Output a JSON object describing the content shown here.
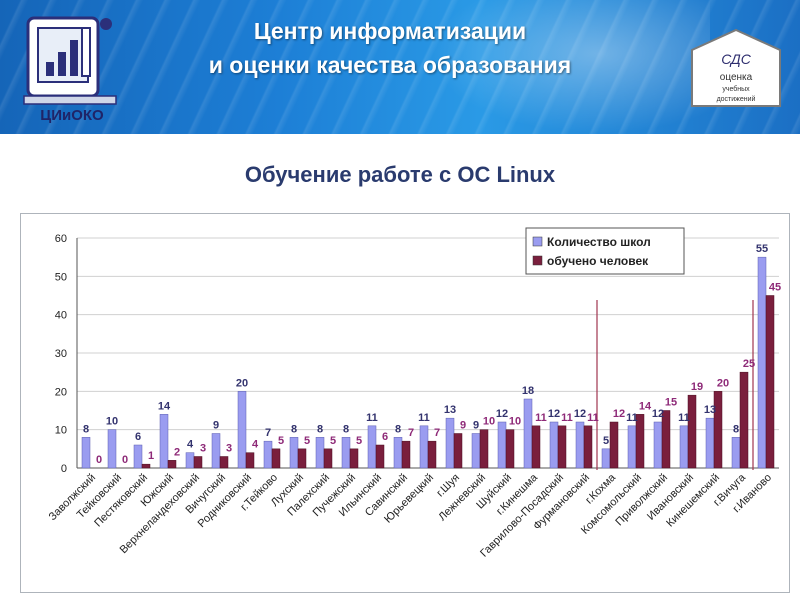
{
  "header": {
    "title_line1": "Центр информатизации",
    "title_line2": "и оценки качества образования",
    "logo_text": "ЦИиОКО",
    "badge_line1": "СДС",
    "badge_line2": "оценка",
    "badge_line3": "учебных",
    "badge_line4": "достижений"
  },
  "slide": {
    "title": "Обучение работе с ОС Linux"
  },
  "colors": {
    "series1": "#9a9cf0",
    "series2": "#7a1f3d",
    "label1": "#33336e",
    "label2": "#8e2a78",
    "marker": "#a0354f"
  },
  "chart_data": {
    "type": "bar",
    "title": "",
    "xlabel": "",
    "ylabel": "",
    "ylim": [
      0,
      60
    ],
    "yticks": [
      0,
      10,
      20,
      30,
      40,
      50,
      60
    ],
    "grid": true,
    "legend": "top-right",
    "categories": [
      "Заволжский",
      "Тейковский",
      "Пестяковский",
      "Южский",
      "Верхнеландеховский",
      "Вичугский",
      "Родниковский",
      "г.Тейково",
      "Лухский",
      "Палехский",
      "Пучежский",
      "Ильинский",
      "Савинский",
      "Юрьевецкий",
      "г.Шуя",
      "Лежневский",
      "Шуйский",
      "г.Кинешма",
      "Гаврилово-Посадский",
      "Фурмановский",
      "г.Кохма",
      "Комсомольский",
      "Приволжский",
      "Ивановский",
      "Кинешемский",
      "г.Вичуга",
      "г.Иваново"
    ],
    "series": [
      {
        "name": "Количество школ",
        "values": [
          8,
          10,
          6,
          14,
          4,
          9,
          20,
          7,
          8,
          8,
          8,
          11,
          8,
          11,
          13,
          9,
          12,
          18,
          12,
          12,
          5,
          11,
          12,
          11,
          13,
          8,
          55
        ]
      },
      {
        "name": "обучено человек",
        "values": [
          0,
          0,
          1,
          2,
          3,
          3,
          4,
          5,
          5,
          5,
          5,
          6,
          7,
          7,
          9,
          10,
          10,
          11,
          11,
          11,
          12,
          14,
          15,
          19,
          20,
          25,
          45
        ]
      }
    ],
    "markers_after": [
      "Фурмановский",
      "г.Вичуга"
    ]
  }
}
